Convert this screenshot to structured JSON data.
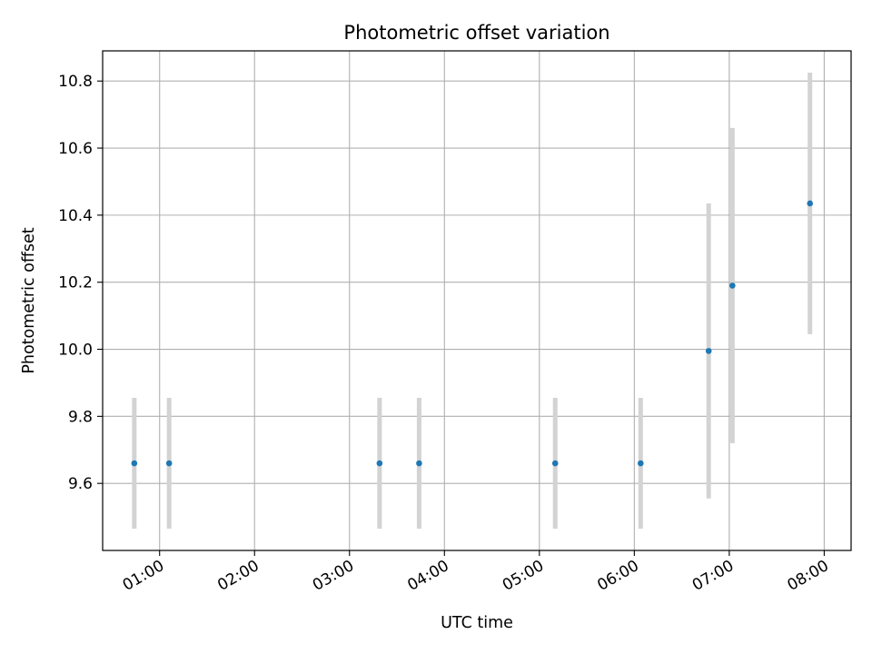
{
  "chart_data": {
    "type": "scatter",
    "title": "Photometric offset variation",
    "xlabel": "UTC time",
    "ylabel": "Photometric offset",
    "grid": true,
    "colors": {
      "point": "#1f77b4",
      "errorbar": "#d3d3d3",
      "grid": "#b0b0b0",
      "axis": "#000000"
    },
    "xlim": [
      "00:24",
      "08:17"
    ],
    "ylim": [
      9.4,
      10.89
    ],
    "x_ticks": [
      "01:00",
      "02:00",
      "03:00",
      "04:00",
      "05:00",
      "06:00",
      "07:00",
      "08:00"
    ],
    "y_ticks": [
      "9.6",
      "9.8",
      "10.0",
      "10.2",
      "10.4",
      "10.6",
      "10.8"
    ],
    "series": [
      {
        "x": [
          "00:44",
          "01:06",
          "03:19",
          "03:44",
          "05:10",
          "06:04",
          "06:47",
          "07:02",
          "07:51"
        ],
        "y": [
          9.66,
          9.66,
          9.66,
          9.66,
          9.66,
          9.66,
          9.995,
          10.19,
          10.435
        ],
        "yerr": [
          0.195,
          0.195,
          0.195,
          0.195,
          0.195,
          0.195,
          0.44,
          0.47,
          0.39
        ]
      }
    ]
  }
}
